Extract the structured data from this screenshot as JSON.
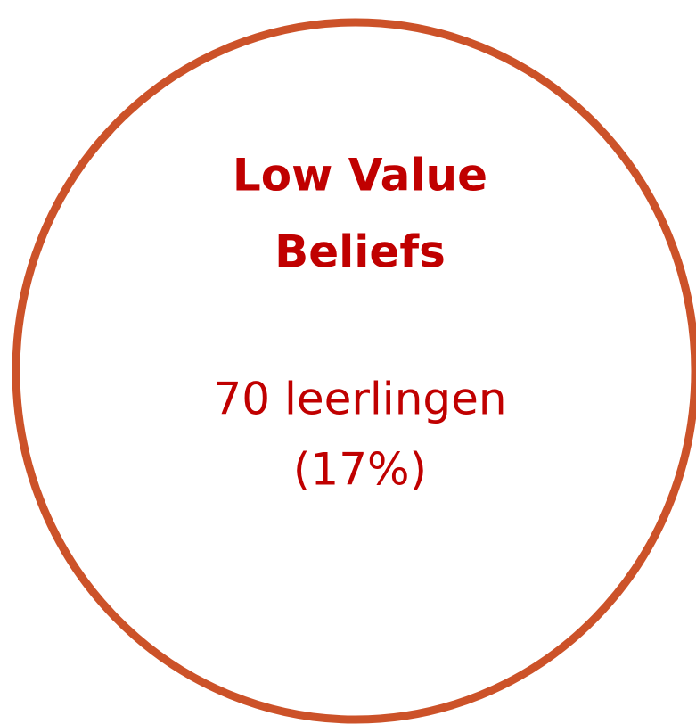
{
  "title_lines": [
    "Low Value",
    "Beliefs"
  ],
  "detail_lines": [
    "70 leerlingen",
    "(17%)"
  ]
}
